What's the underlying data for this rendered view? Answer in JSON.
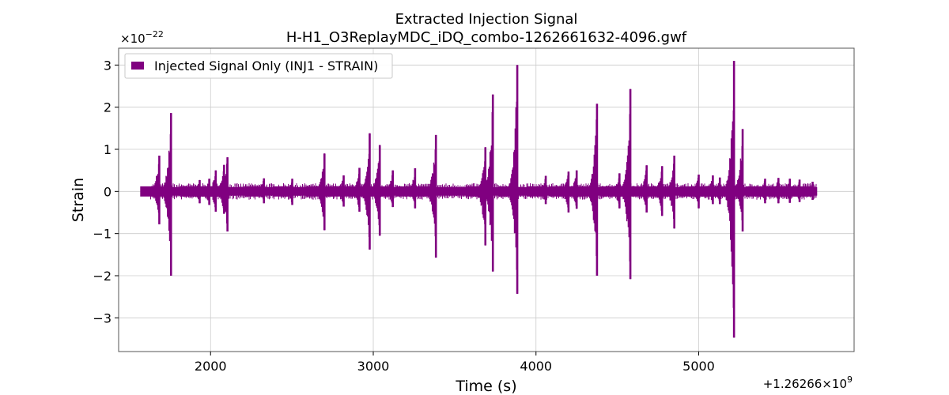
{
  "chart_data": {
    "type": "line",
    "title": "Extracted Injection Signal",
    "subtitle": "H-H1_O3ReplayMDC_iDQ_combo-1262661632-4096.gwf",
    "xlabel": "Time (s)",
    "ylabel": "Strain",
    "x_offset_label": "+1.26266×10",
    "x_offset_exp": "9",
    "y_scale_label": "×10",
    "y_scale_exp": "−22",
    "xlim": [
      1435,
      5955
    ],
    "ylim": [
      -3.8,
      3.4
    ],
    "x_ticks": [
      2000,
      3000,
      4000,
      5000
    ],
    "x_tick_labels": [
      "2000",
      "3000",
      "4000",
      "5000"
    ],
    "y_ticks": [
      -3,
      -2,
      -1,
      0,
      1,
      2,
      3
    ],
    "y_tick_labels": [
      "−3",
      "−2",
      "−1",
      "0",
      "1",
      "2",
      "3"
    ],
    "grid": true,
    "legend_position": "top-left",
    "series": [
      {
        "name": "Injected Signal Only (INJ1 - STRAIN)",
        "color": "#800080",
        "x_range": [
          1632,
          5728
        ],
        "baseline_envelope": 0.1,
        "bursts": [
          {
            "x": 1685,
            "max": 0.85,
            "min": -0.78
          },
          {
            "x": 1757,
            "max": 1.86,
            "min": -2.0
          },
          {
            "x": 1933,
            "max": 0.27,
            "min": -0.28
          },
          {
            "x": 1992,
            "max": 0.3,
            "min": -0.32
          },
          {
            "x": 2032,
            "max": 0.5,
            "min": -0.48
          },
          {
            "x": 2083,
            "max": 0.63,
            "min": -0.53
          },
          {
            "x": 2104,
            "max": 0.81,
            "min": -0.95
          },
          {
            "x": 2328,
            "max": 0.31,
            "min": -0.28
          },
          {
            "x": 2502,
            "max": 0.3,
            "min": -0.32
          },
          {
            "x": 2700,
            "max": 0.9,
            "min": -0.92
          },
          {
            "x": 2818,
            "max": 0.38,
            "min": -0.36
          },
          {
            "x": 2915,
            "max": 0.56,
            "min": -0.48
          },
          {
            "x": 2978,
            "max": 1.38,
            "min": -1.38
          },
          {
            "x": 3040,
            "max": 1.1,
            "min": -1.05
          },
          {
            "x": 3120,
            "max": 0.5,
            "min": -0.37
          },
          {
            "x": 3257,
            "max": 0.55,
            "min": -0.4
          },
          {
            "x": 3385,
            "max": 1.34,
            "min": -1.57
          },
          {
            "x": 3689,
            "max": 1.05,
            "min": -1.28
          },
          {
            "x": 3735,
            "max": 2.3,
            "min": -1.9
          },
          {
            "x": 3885,
            "max": 3.0,
            "min": -2.43
          },
          {
            "x": 4060,
            "max": 0.37,
            "min": -0.3
          },
          {
            "x": 4200,
            "max": 0.47,
            "min": -0.5
          },
          {
            "x": 4250,
            "max": 0.5,
            "min": -0.41
          },
          {
            "x": 4375,
            "max": 2.08,
            "min": -2.0
          },
          {
            "x": 4513,
            "max": 0.43,
            "min": -0.4
          },
          {
            "x": 4580,
            "max": 2.43,
            "min": -2.08
          },
          {
            "x": 4680,
            "max": 0.62,
            "min": -0.5
          },
          {
            "x": 4775,
            "max": 0.6,
            "min": -0.58
          },
          {
            "x": 4850,
            "max": 0.85,
            "min": -0.88
          },
          {
            "x": 5000,
            "max": 0.4,
            "min": -0.4
          },
          {
            "x": 5087,
            "max": 0.38,
            "min": -0.3
          },
          {
            "x": 5130,
            "max": 0.33,
            "min": -0.3
          },
          {
            "x": 5217,
            "max": 3.1,
            "min": -3.47
          },
          {
            "x": 5270,
            "max": 1.48,
            "min": -0.95
          },
          {
            "x": 5408,
            "max": 0.3,
            "min": -0.28
          },
          {
            "x": 5490,
            "max": 0.32,
            "min": -0.28
          },
          {
            "x": 5560,
            "max": 0.3,
            "min": -0.27
          },
          {
            "x": 5620,
            "max": 0.28,
            "min": -0.25
          },
          {
            "x": 5700,
            "max": 0.23,
            "min": -0.2
          }
        ]
      }
    ]
  }
}
